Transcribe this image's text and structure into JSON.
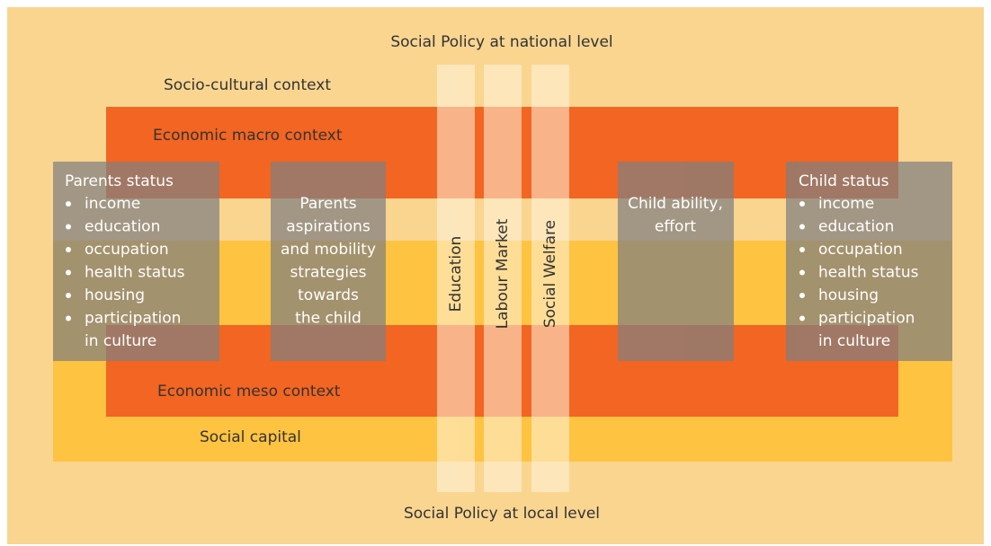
{
  "title_top": "Social Policy at national level",
  "title_bottom": "Social Policy at local level",
  "contexts": {
    "socio_cultural": "Socio-cultural context",
    "macro": "Economic macro context",
    "meso": "Economic meso context",
    "social_capital": "Social capital"
  },
  "policies": [
    "Education",
    "Labour Market",
    "Social Welfare"
  ],
  "parents_status": {
    "title": "Parents status",
    "items": [
      "income",
      "education",
      "occupation",
      "health status",
      "housing",
      "participation",
      "in culture"
    ]
  },
  "parents_aspirations": [
    "Parents",
    "aspirations",
    "and mobility",
    "strategies",
    "towards",
    "the child"
  ],
  "child_ability": [
    "Child ability,",
    "effort"
  ],
  "child_status": {
    "title": "Child status",
    "items": [
      "income",
      "education",
      "occupation",
      "health status",
      "housing",
      "participation",
      "in culture"
    ]
  }
}
